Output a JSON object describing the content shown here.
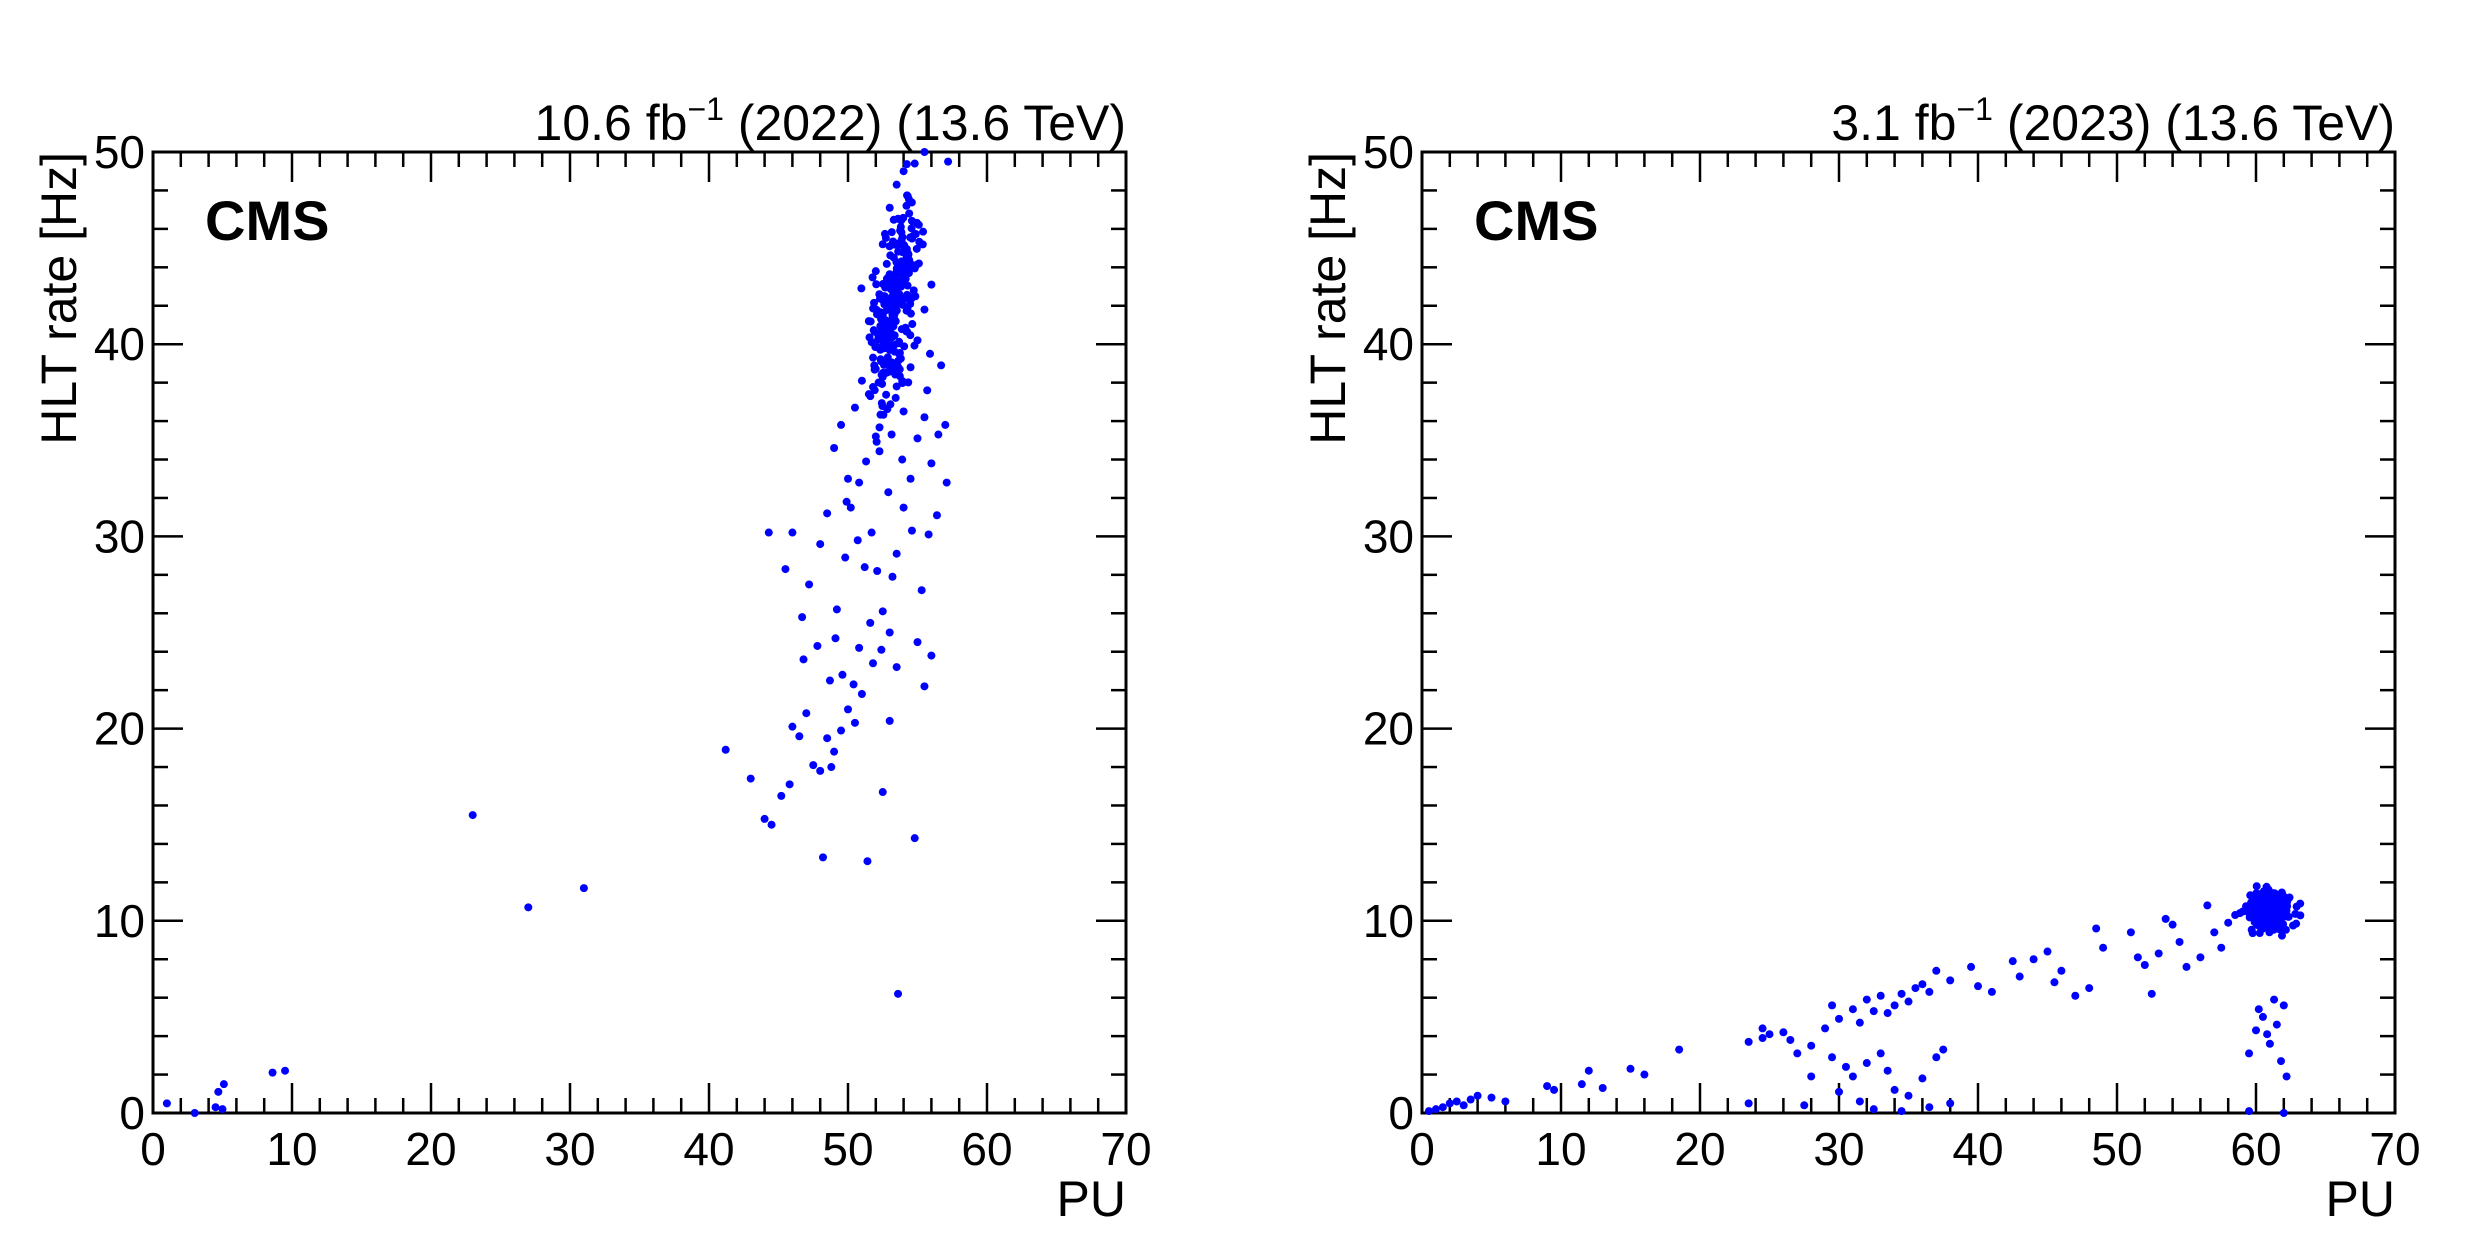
{
  "chart_data": [
    {
      "type": "scatter",
      "header": {
        "lumi": "10.6 fb",
        "exp": "−1",
        "rest": " (2022) (13.6 TeV)"
      },
      "tag": "CMS",
      "xlabel": "PU",
      "ylabel": "HLT rate [Hz]",
      "xlim": [
        0,
        70
      ],
      "ylim": [
        0,
        50
      ],
      "xticks": [
        0,
        10,
        20,
        30,
        40,
        50,
        60,
        70
      ],
      "yticks": [
        0,
        10,
        20,
        30,
        40,
        50
      ],
      "marker_color": "#0000ff",
      "points": [
        [
          4.7,
          1.1
        ],
        [
          5.1,
          1.5
        ],
        [
          8.6,
          2.1
        ],
        [
          9.5,
          2.2
        ],
        [
          23,
          15.5
        ],
        [
          27,
          10.7
        ],
        [
          31,
          11.7
        ],
        [
          53.6,
          6.2
        ],
        [
          41.2,
          18.9
        ],
        [
          43,
          17.4
        ],
        [
          44,
          15.3
        ],
        [
          44.5,
          15.0
        ],
        [
          45.2,
          16.5
        ],
        [
          45.8,
          17.1
        ],
        [
          46,
          20.1
        ],
        [
          46.5,
          19.6
        ],
        [
          47,
          20.8
        ],
        [
          47.5,
          18.1
        ],
        [
          48,
          17.8
        ],
        [
          48.2,
          13.3
        ],
        [
          48.5,
          19.5
        ],
        [
          48.8,
          18.0
        ],
        [
          49,
          18.8
        ],
        [
          49.5,
          19.9
        ],
        [
          50,
          21.0
        ],
        [
          50.4,
          22.3
        ],
        [
          50.8,
          24.2
        ],
        [
          51,
          21.8
        ],
        [
          51.4,
          13.1
        ],
        [
          51.8,
          23.4
        ],
        [
          52.5,
          16.7
        ],
        [
          53,
          20.4
        ],
        [
          54.8,
          14.3
        ],
        [
          53.5,
          23.2
        ],
        [
          55,
          24.5
        ],
        [
          55.5,
          22.2
        ],
        [
          56,
          23.8
        ],
        [
          55.3,
          27.2
        ],
        [
          44.3,
          30.2
        ],
        [
          45.5,
          28.3
        ],
        [
          46,
          30.2
        ],
        [
          46.7,
          25.8
        ],
        [
          47.2,
          27.5
        ],
        [
          48,
          29.6
        ],
        [
          48.5,
          31.2
        ],
        [
          49.2,
          26.2
        ],
        [
          49.8,
          28.9
        ],
        [
          50.2,
          31.5
        ],
        [
          50.8,
          32.8
        ],
        [
          51.3,
          33.9
        ],
        [
          51.7,
          30.2
        ],
        [
          52.1,
          28.2
        ],
        [
          52.5,
          26.1
        ],
        [
          53,
          25.0
        ],
        [
          53.5,
          29.1
        ],
        [
          54,
          31.5
        ],
        [
          54.5,
          33.0
        ],
        [
          55,
          35.1
        ],
        [
          55.5,
          36.2
        ],
        [
          56,
          33.8
        ],
        [
          56.5,
          35.3
        ],
        [
          57,
          35.8
        ],
        [
          57.1,
          32.8
        ],
        [
          56.4,
          31.1
        ],
        [
          55.8,
          30.1
        ],
        [
          49,
          34.6
        ],
        [
          49.5,
          35.8
        ],
        [
          50,
          33.0
        ],
        [
          50.5,
          36.7
        ],
        [
          51,
          38.1
        ],
        [
          51.5,
          37.4
        ],
        [
          52,
          35.2
        ],
        [
          52.5,
          38.3
        ],
        [
          53,
          39.7
        ],
        [
          53.5,
          37.8
        ],
        [
          54,
          36.5
        ],
        [
          54.5,
          38.8
        ],
        [
          55,
          40.2
        ],
        [
          55.5,
          41.8
        ],
        [
          56,
          43.1
        ],
        [
          52.2,
          40.5
        ],
        [
          52.8,
          42.3
        ],
        [
          53.3,
          44.5
        ],
        [
          53.8,
          46.1
        ],
        [
          54.3,
          47.7
        ],
        [
          54.8,
          49.4
        ],
        [
          55.5,
          50.0
        ],
        [
          57.2,
          49.5
        ],
        [
          51.5,
          41.2
        ],
        [
          52,
          43.8
        ],
        [
          52.5,
          45.2
        ],
        [
          53,
          47.1
        ],
        [
          53.5,
          48.3
        ],
        [
          54,
          49.0
        ],
        [
          54.6,
          45.5
        ],
        [
          55.1,
          44.2
        ],
        [
          51.8,
          39.3
        ],
        [
          52.3,
          39.8
        ],
        [
          52.7,
          40.9
        ],
        [
          53.2,
          41.5
        ],
        [
          53.7,
          42.6
        ],
        [
          54.1,
          43.9
        ],
        [
          54.4,
          46.8
        ],
        [
          53.9,
          44.8
        ],
        [
          3.0,
          0.0
        ],
        [
          1.0,
          0.5
        ],
        [
          4.5,
          0.3
        ],
        [
          5,
          0.2
        ],
        [
          49.6,
          22.8
        ],
        [
          50.5,
          20.3
        ],
        [
          51.6,
          25.5
        ],
        [
          52.4,
          24.1
        ],
        [
          46.8,
          23.6
        ],
        [
          47.8,
          24.3
        ],
        [
          49.1,
          24.7
        ],
        [
          48.7,
          22.5
        ],
        [
          53.2,
          27.9
        ],
        [
          53.9,
          34.0
        ],
        [
          54.6,
          30.3
        ],
        [
          51.2,
          28.4
        ],
        [
          50.7,
          29.8
        ],
        [
          49.9,
          31.8
        ],
        [
          52.9,
          32.3
        ],
        [
          55.7,
          37.6
        ],
        [
          56.7,
          38.9
        ],
        [
          55.9,
          39.5
        ]
      ],
      "cluster": {
        "center_x": 53.3,
        "center_y": 42.0,
        "spread_x": 1.3,
        "spread_y": 4.5,
        "count": 260
      }
    },
    {
      "type": "scatter",
      "header": {
        "lumi": "3.1 fb",
        "exp": "−1",
        "rest": " (2023) (13.6 TeV)"
      },
      "tag": "CMS",
      "xlabel": "PU",
      "ylabel": "HLT rate [Hz]",
      "xlim": [
        0,
        70
      ],
      "ylim": [
        0,
        50
      ],
      "xticks": [
        0,
        10,
        20,
        30,
        40,
        50,
        60,
        70
      ],
      "yticks": [
        0,
        10,
        20,
        30,
        40,
        50
      ],
      "marker_color": "#0000ff",
      "points": [
        [
          0.5,
          0.1
        ],
        [
          1.0,
          0.2
        ],
        [
          1.5,
          0.3
        ],
        [
          2.0,
          0.5
        ],
        [
          2.5,
          0.6
        ],
        [
          3.0,
          0.4
        ],
        [
          3.5,
          0.7
        ],
        [
          4.0,
          0.9
        ],
        [
          5.0,
          0.8
        ],
        [
          6.0,
          0.6
        ],
        [
          9.0,
          1.4
        ],
        [
          9.5,
          1.2
        ],
        [
          11.5,
          1.5
        ],
        [
          12,
          2.2
        ],
        [
          13,
          1.3
        ],
        [
          15,
          2.3
        ],
        [
          16,
          2.0
        ],
        [
          18.5,
          3.3
        ],
        [
          23.5,
          3.7
        ],
        [
          24.5,
          4.4
        ],
        [
          25,
          4.1
        ],
        [
          26,
          4.2
        ],
        [
          26.5,
          3.8
        ],
        [
          27,
          3.1
        ],
        [
          28,
          3.5
        ],
        [
          29,
          4.4
        ],
        [
          29.5,
          5.6
        ],
        [
          30,
          4.9
        ],
        [
          31,
          5.4
        ],
        [
          31.5,
          4.7
        ],
        [
          32,
          5.9
        ],
        [
          32.5,
          5.3
        ],
        [
          33,
          6.1
        ],
        [
          33.5,
          5.2
        ],
        [
          34,
          5.6
        ],
        [
          34.5,
          6.2
        ],
        [
          35,
          5.8
        ],
        [
          35.5,
          6.5
        ],
        [
          36,
          6.7
        ],
        [
          36.5,
          6.3
        ],
        [
          37,
          7.4
        ],
        [
          38,
          6.9
        ],
        [
          39.5,
          7.6
        ],
        [
          40,
          6.6
        ],
        [
          41,
          6.3
        ],
        [
          42.5,
          7.9
        ],
        [
          43,
          7.1
        ],
        [
          44,
          8.0
        ],
        [
          45,
          8.4
        ],
        [
          45.5,
          6.8
        ],
        [
          46,
          7.4
        ],
        [
          47,
          6.1
        ],
        [
          48,
          6.5
        ],
        [
          48.5,
          9.6
        ],
        [
          49,
          8.6
        ],
        [
          51,
          9.4
        ],
        [
          51.5,
          8.1
        ],
        [
          52,
          7.7
        ],
        [
          52.5,
          6.2
        ],
        [
          53,
          8.3
        ],
        [
          53.5,
          10.1
        ],
        [
          54,
          9.8
        ],
        [
          54.5,
          8.9
        ],
        [
          55,
          7.6
        ],
        [
          56,
          8.1
        ],
        [
          56.5,
          10.8
        ],
        [
          57,
          9.4
        ],
        [
          57.5,
          8.6
        ],
        [
          58,
          9.9
        ],
        [
          58.5,
          10.3
        ],
        [
          29.5,
          2.9
        ],
        [
          30.5,
          2.4
        ],
        [
          31,
          1.9
        ],
        [
          32,
          2.6
        ],
        [
          33,
          3.1
        ],
        [
          33.5,
          2.2
        ],
        [
          34,
          1.2
        ],
        [
          35,
          0.9
        ],
        [
          36,
          1.8
        ],
        [
          37,
          2.9
        ],
        [
          37.5,
          3.3
        ],
        [
          30,
          1.1
        ],
        [
          31.5,
          0.6
        ],
        [
          28,
          1.9
        ],
        [
          27.5,
          0.4
        ],
        [
          23.5,
          0.5
        ],
        [
          32.5,
          0.2
        ],
        [
          34.5,
          0.1
        ],
        [
          36.5,
          0.3
        ],
        [
          24.5,
          3.9
        ],
        [
          38,
          0.5
        ],
        [
          59.5,
          3.1
        ],
        [
          60,
          4.3
        ],
        [
          60.5,
          5.0
        ],
        [
          61,
          3.6
        ],
        [
          61.5,
          4.6
        ],
        [
          61.8,
          2.7
        ],
        [
          62,
          5.6
        ],
        [
          61.3,
          5.9
        ],
        [
          60.8,
          4.1
        ],
        [
          62.2,
          1.9
        ],
        [
          60.2,
          5.4
        ],
        [
          59.5,
          0.1
        ],
        [
          62,
          0.0
        ]
      ],
      "cluster": {
        "center_x": 61.0,
        "center_y": 10.5,
        "spread_x": 1.5,
        "spread_y": 0.9,
        "count": 280
      }
    }
  ]
}
